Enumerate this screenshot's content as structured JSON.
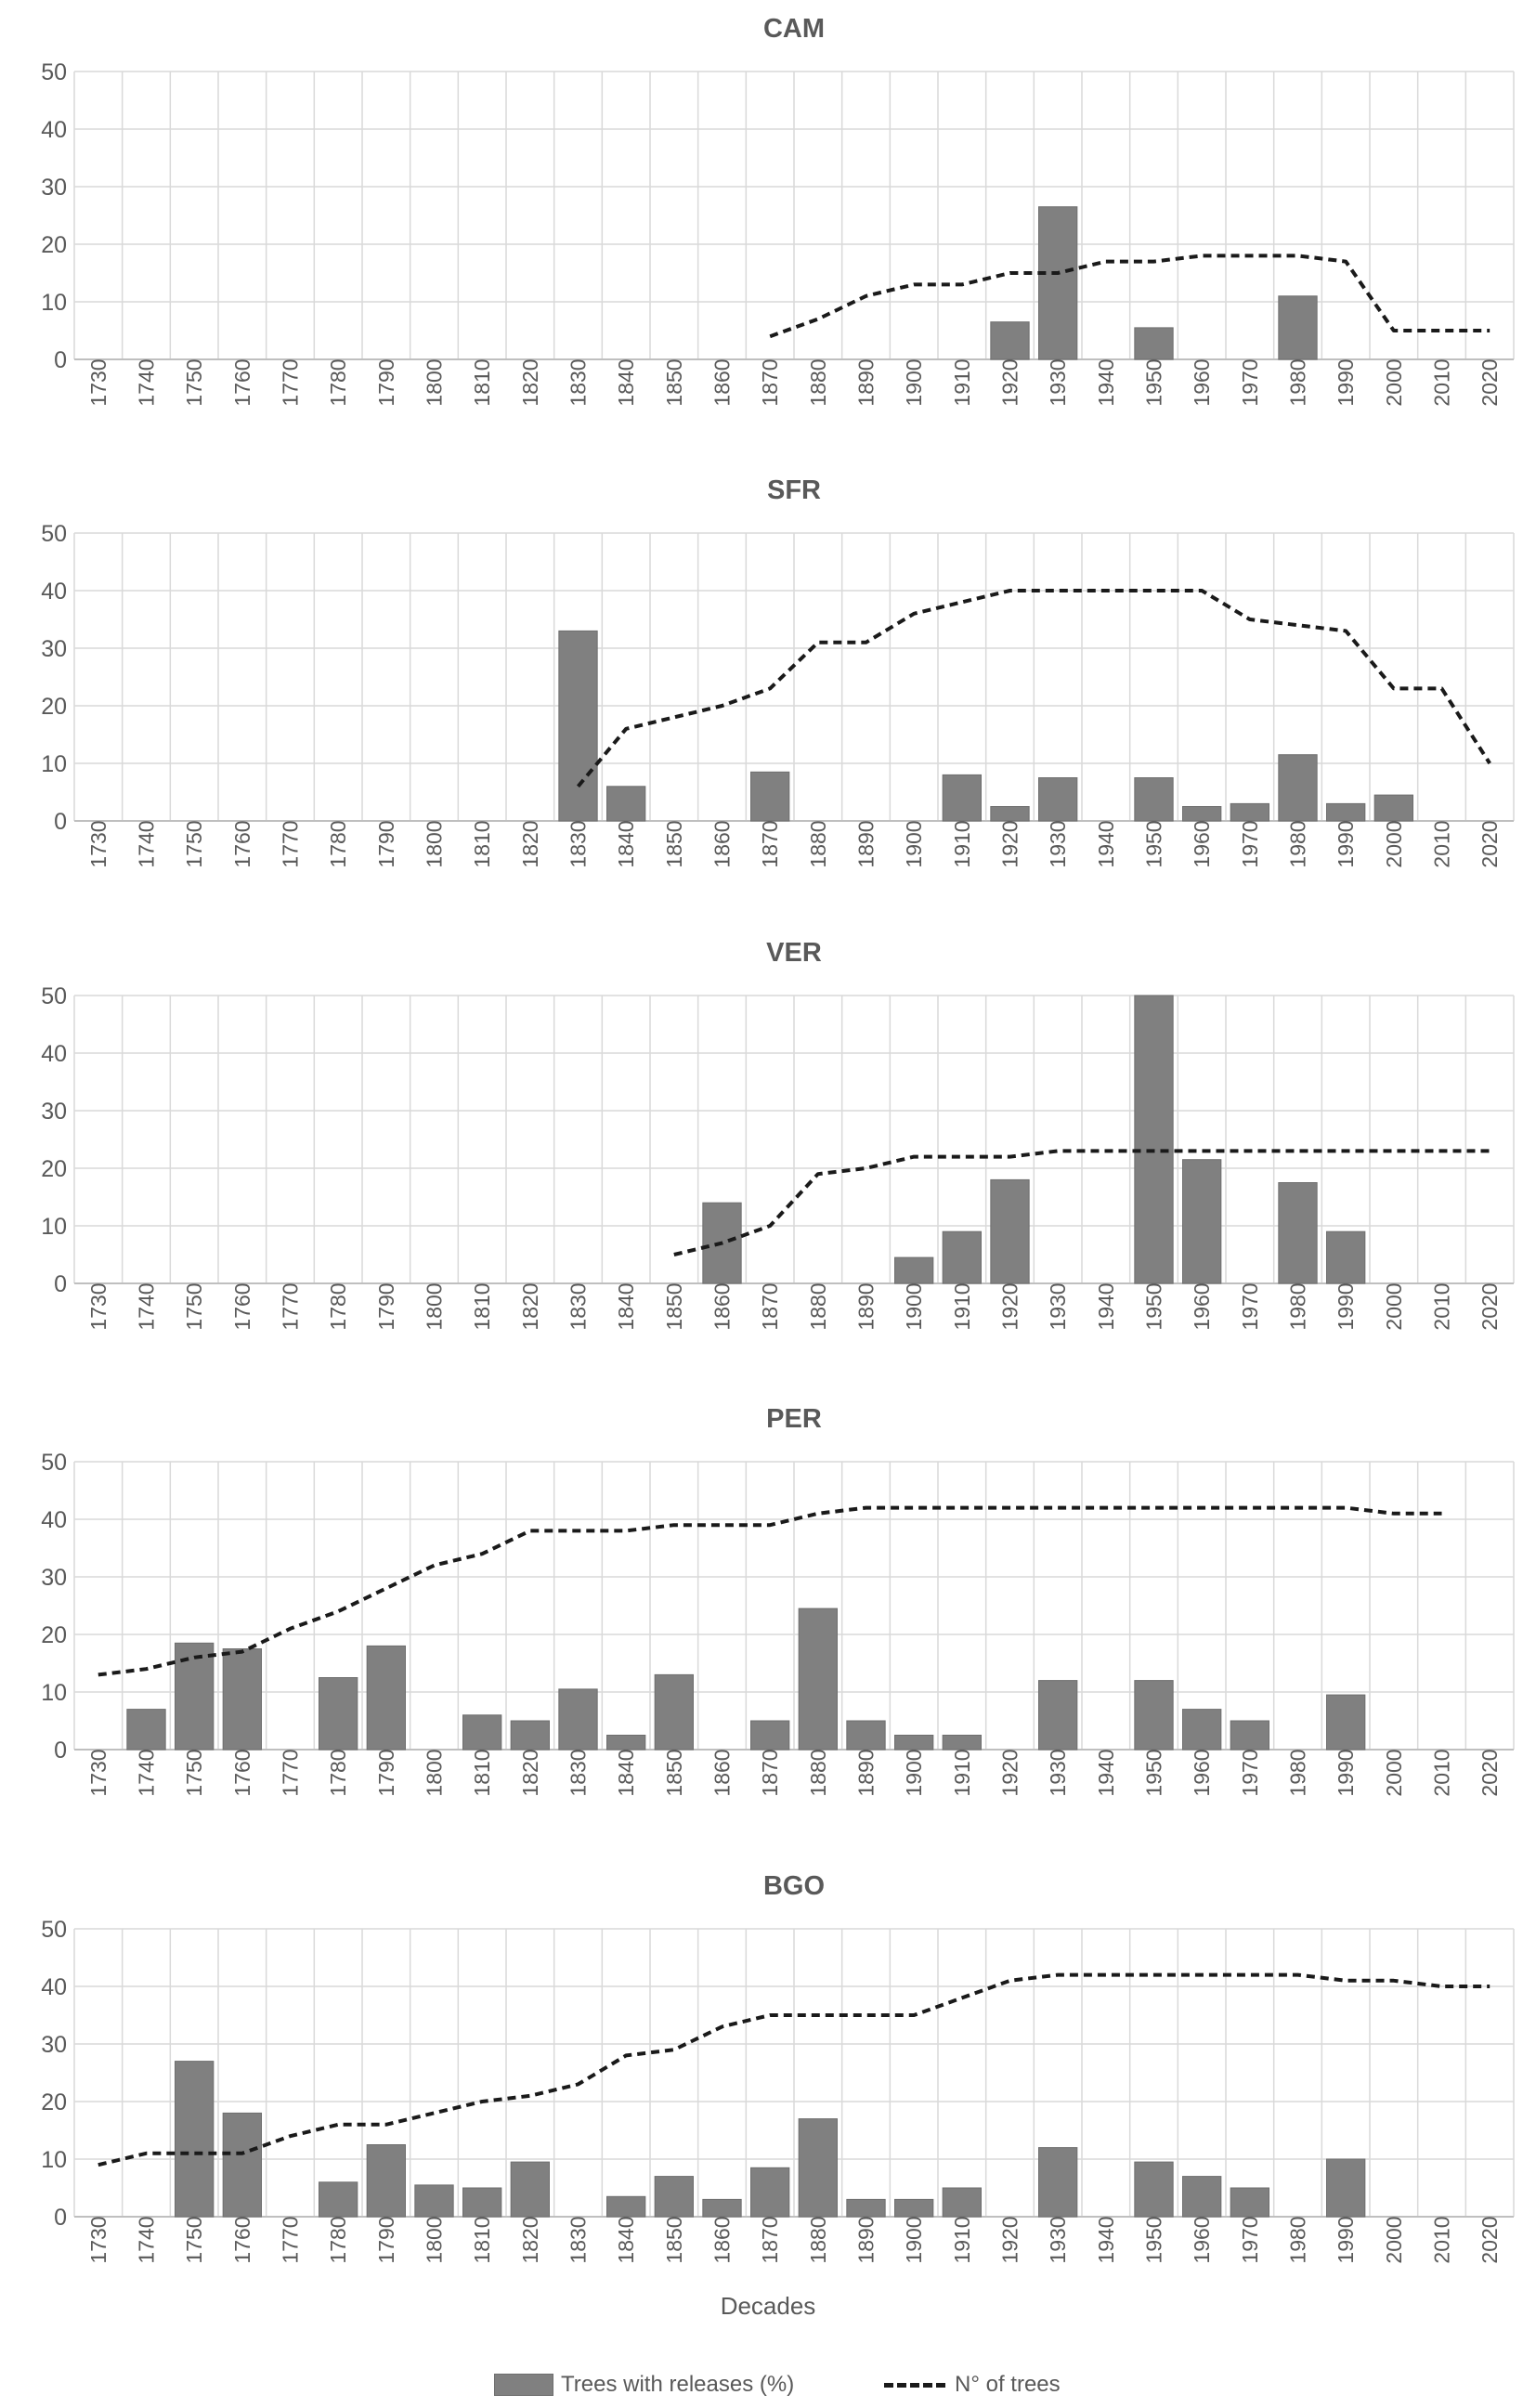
{
  "chart_data": [
    {
      "type": "bar",
      "title": "CAM",
      "categories": [
        "1730",
        "1740",
        "1750",
        "1760",
        "1770",
        "1780",
        "1790",
        "1800",
        "1810",
        "1820",
        "1830",
        "1840",
        "1850",
        "1860",
        "1870",
        "1880",
        "1890",
        "1900",
        "1910",
        "1920",
        "1930",
        "1940",
        "1950",
        "1960",
        "1970",
        "1980",
        "1990",
        "2000",
        "2010",
        "2020"
      ],
      "yticks": [
        0,
        10,
        20,
        30,
        40,
        50
      ],
      "ylim": [
        0,
        50
      ],
      "grid": true,
      "series": [
        {
          "name": "Trees with releases (%)",
          "kind": "bar",
          "values": [
            null,
            null,
            null,
            null,
            null,
            null,
            null,
            null,
            null,
            null,
            null,
            null,
            null,
            null,
            null,
            null,
            null,
            null,
            null,
            6.5,
            26.5,
            null,
            5.5,
            null,
            null,
            11,
            null,
            null,
            null,
            null
          ]
        },
        {
          "name": "N° of trees",
          "kind": "dashed-line",
          "values": [
            null,
            null,
            null,
            null,
            null,
            null,
            null,
            null,
            null,
            null,
            null,
            null,
            null,
            null,
            4,
            7,
            11,
            13,
            13,
            15,
            15,
            17,
            17,
            18,
            18,
            18,
            17,
            5,
            5,
            5
          ]
        }
      ]
    },
    {
      "type": "bar",
      "title": "SFR",
      "categories": [
        "1730",
        "1740",
        "1750",
        "1760",
        "1770",
        "1780",
        "1790",
        "1800",
        "1810",
        "1820",
        "1830",
        "1840",
        "1850",
        "1860",
        "1870",
        "1880",
        "1890",
        "1900",
        "1910",
        "1920",
        "1930",
        "1940",
        "1950",
        "1960",
        "1970",
        "1980",
        "1990",
        "2000",
        "2010",
        "2020"
      ],
      "yticks": [
        0,
        10,
        20,
        30,
        40,
        50
      ],
      "ylim": [
        0,
        50
      ],
      "grid": true,
      "series": [
        {
          "name": "Trees with releases (%)",
          "kind": "bar",
          "values": [
            null,
            null,
            null,
            null,
            null,
            null,
            null,
            null,
            null,
            null,
            33,
            6,
            null,
            null,
            8.5,
            null,
            null,
            null,
            8,
            2.5,
            7.5,
            null,
            7.5,
            2.5,
            3,
            11.5,
            3,
            4.5,
            null,
            null
          ]
        },
        {
          "name": "N° of trees",
          "kind": "dashed-line",
          "values": [
            null,
            null,
            null,
            null,
            null,
            null,
            null,
            null,
            null,
            null,
            6,
            16,
            18,
            20,
            23,
            31,
            31,
            36,
            38,
            40,
            40,
            40,
            40,
            40,
            35,
            34,
            33,
            23,
            23,
            10
          ]
        }
      ]
    },
    {
      "type": "bar",
      "title": "VER",
      "categories": [
        "1730",
        "1740",
        "1750",
        "1760",
        "1770",
        "1780",
        "1790",
        "1800",
        "1810",
        "1820",
        "1830",
        "1840",
        "1850",
        "1860",
        "1870",
        "1880",
        "1890",
        "1900",
        "1910",
        "1920",
        "1930",
        "1940",
        "1950",
        "1960",
        "1970",
        "1980",
        "1990",
        "2000",
        "2010",
        "2020"
      ],
      "yticks": [
        0,
        10,
        20,
        30,
        40,
        50
      ],
      "ylim": [
        0,
        50
      ],
      "grid": true,
      "series": [
        {
          "name": "Trees with releases (%)",
          "kind": "bar",
          "values": [
            null,
            null,
            null,
            null,
            null,
            null,
            null,
            null,
            null,
            null,
            null,
            null,
            null,
            14,
            null,
            null,
            null,
            4.5,
            9,
            18,
            null,
            null,
            50,
            21.5,
            null,
            17.5,
            9,
            null,
            null,
            null
          ]
        },
        {
          "name": "N° of trees",
          "kind": "dashed-line",
          "values": [
            null,
            null,
            null,
            null,
            null,
            null,
            null,
            null,
            null,
            null,
            null,
            null,
            5,
            7,
            10,
            19,
            20,
            22,
            22,
            22,
            23,
            23,
            23,
            23,
            23,
            23,
            23,
            23,
            23,
            23
          ]
        }
      ]
    },
    {
      "type": "bar",
      "title": "PER",
      "categories": [
        "1730",
        "1740",
        "1750",
        "1760",
        "1770",
        "1780",
        "1790",
        "1800",
        "1810",
        "1820",
        "1830",
        "1840",
        "1850",
        "1860",
        "1870",
        "1880",
        "1890",
        "1900",
        "1910",
        "1920",
        "1930",
        "1940",
        "1950",
        "1960",
        "1970",
        "1980",
        "1990",
        "2000",
        "2010",
        "2020"
      ],
      "yticks": [
        0,
        10,
        20,
        30,
        40,
        50
      ],
      "ylim": [
        0,
        50
      ],
      "grid": true,
      "series": [
        {
          "name": "Trees with releases (%)",
          "kind": "bar",
          "values": [
            null,
            7,
            18.5,
            17.5,
            null,
            12.5,
            18,
            null,
            6,
            5,
            10.5,
            2.5,
            13,
            null,
            5,
            24.5,
            5,
            2.5,
            2.5,
            null,
            12,
            null,
            12,
            7,
            5,
            null,
            9.5,
            null,
            null,
            null
          ]
        },
        {
          "name": "N° of trees",
          "kind": "dashed-line",
          "values": [
            13,
            14,
            16,
            17,
            21,
            24,
            28,
            32,
            34,
            38,
            38,
            38,
            39,
            39,
            39,
            41,
            42,
            42,
            42,
            42,
            42,
            42,
            42,
            42,
            42,
            42,
            42,
            41,
            41,
            null
          ]
        }
      ]
    },
    {
      "type": "bar",
      "title": "BGO",
      "categories": [
        "1730",
        "1740",
        "1750",
        "1760",
        "1770",
        "1780",
        "1790",
        "1800",
        "1810",
        "1820",
        "1830",
        "1840",
        "1850",
        "1860",
        "1870",
        "1880",
        "1890",
        "1900",
        "1910",
        "1920",
        "1930",
        "1940",
        "1950",
        "1960",
        "1970",
        "1980",
        "1990",
        "2000",
        "2010",
        "2020"
      ],
      "yticks": [
        0,
        10,
        20,
        30,
        40,
        50
      ],
      "ylim": [
        0,
        50
      ],
      "grid": true,
      "xlabel": "Decades",
      "series": [
        {
          "name": "Trees with releases (%)",
          "kind": "bar",
          "values": [
            null,
            null,
            27,
            18,
            null,
            6,
            12.5,
            5.5,
            5,
            9.5,
            null,
            3.5,
            7,
            3,
            8.5,
            17,
            3,
            3,
            5,
            null,
            12,
            null,
            9.5,
            7,
            5,
            null,
            10,
            null,
            null,
            null
          ]
        },
        {
          "name": "N° of trees",
          "kind": "dashed-line",
          "values": [
            9,
            11,
            11,
            11,
            14,
            16,
            16,
            18,
            20,
            21,
            23,
            28,
            29,
            33,
            35,
            35,
            35,
            35,
            38,
            41,
            42,
            42,
            42,
            42,
            42,
            42,
            41,
            41,
            40,
            40
          ]
        }
      ]
    }
  ],
  "legend": {
    "placement": "bottom",
    "bar_label": "Trees with releases (%)",
    "line_label": "N° of trees"
  },
  "colors": {
    "bar_fill": "#808080",
    "bar_stroke": "#6e6e6e",
    "line": "#1a1a1a",
    "grid": "#d9d9d9",
    "text": "#595959"
  }
}
